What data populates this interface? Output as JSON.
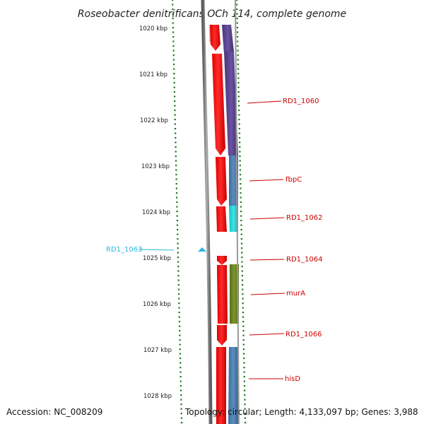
{
  "title": "Roseobacter denitrificans OCh 114, complete genome",
  "footer": {
    "accession": "Accession: NC_008209",
    "topology": "Topology: circular; Length: 4,133,097 bp; Genes: 3,988"
  },
  "ruler_labels": [
    "1020 kbp",
    "1021 kbp",
    "1022 kbp",
    "1023 kbp",
    "1024 kbp",
    "1025 kbp",
    "1026 kbp",
    "1027 kbp",
    "1028 kbp"
  ],
  "genes": [
    {
      "name": "RD1_1060",
      "color": "#cc0000",
      "inner_color": "#ff0000",
      "outer_color": "#5b3f8f"
    },
    {
      "name": "fbpC",
      "color": "#cc0000",
      "inner_color": "#ff0000",
      "outer_color": "#4a7aa8"
    },
    {
      "name": "RD1_1062",
      "color": "#cc0000",
      "inner_color": "#ff0000",
      "outer_color": "#1ad1d1"
    },
    {
      "name": "RD1_1063",
      "color": "#29b6e0",
      "marker": "triangle"
    },
    {
      "name": "RD1_1064",
      "color": "#cc0000",
      "inner_color": "#ff0000"
    },
    {
      "name": "murA",
      "color": "#cc0000",
      "inner_color": "#ff0000",
      "outer_color": "#6b8424"
    },
    {
      "name": "RD1_1066",
      "color": "#cc0000",
      "inner_color": "#ff0000"
    },
    {
      "name": "hisD",
      "color": "#cc0000",
      "inner_color": "#ff0000",
      "outer_color": "#4a7aa8"
    }
  ],
  "colors": {
    "backbone": "#7a7a7a",
    "tick": "#1a7a1a",
    "label_red": "#cc0000",
    "label_blue": "#29b6e0"
  }
}
